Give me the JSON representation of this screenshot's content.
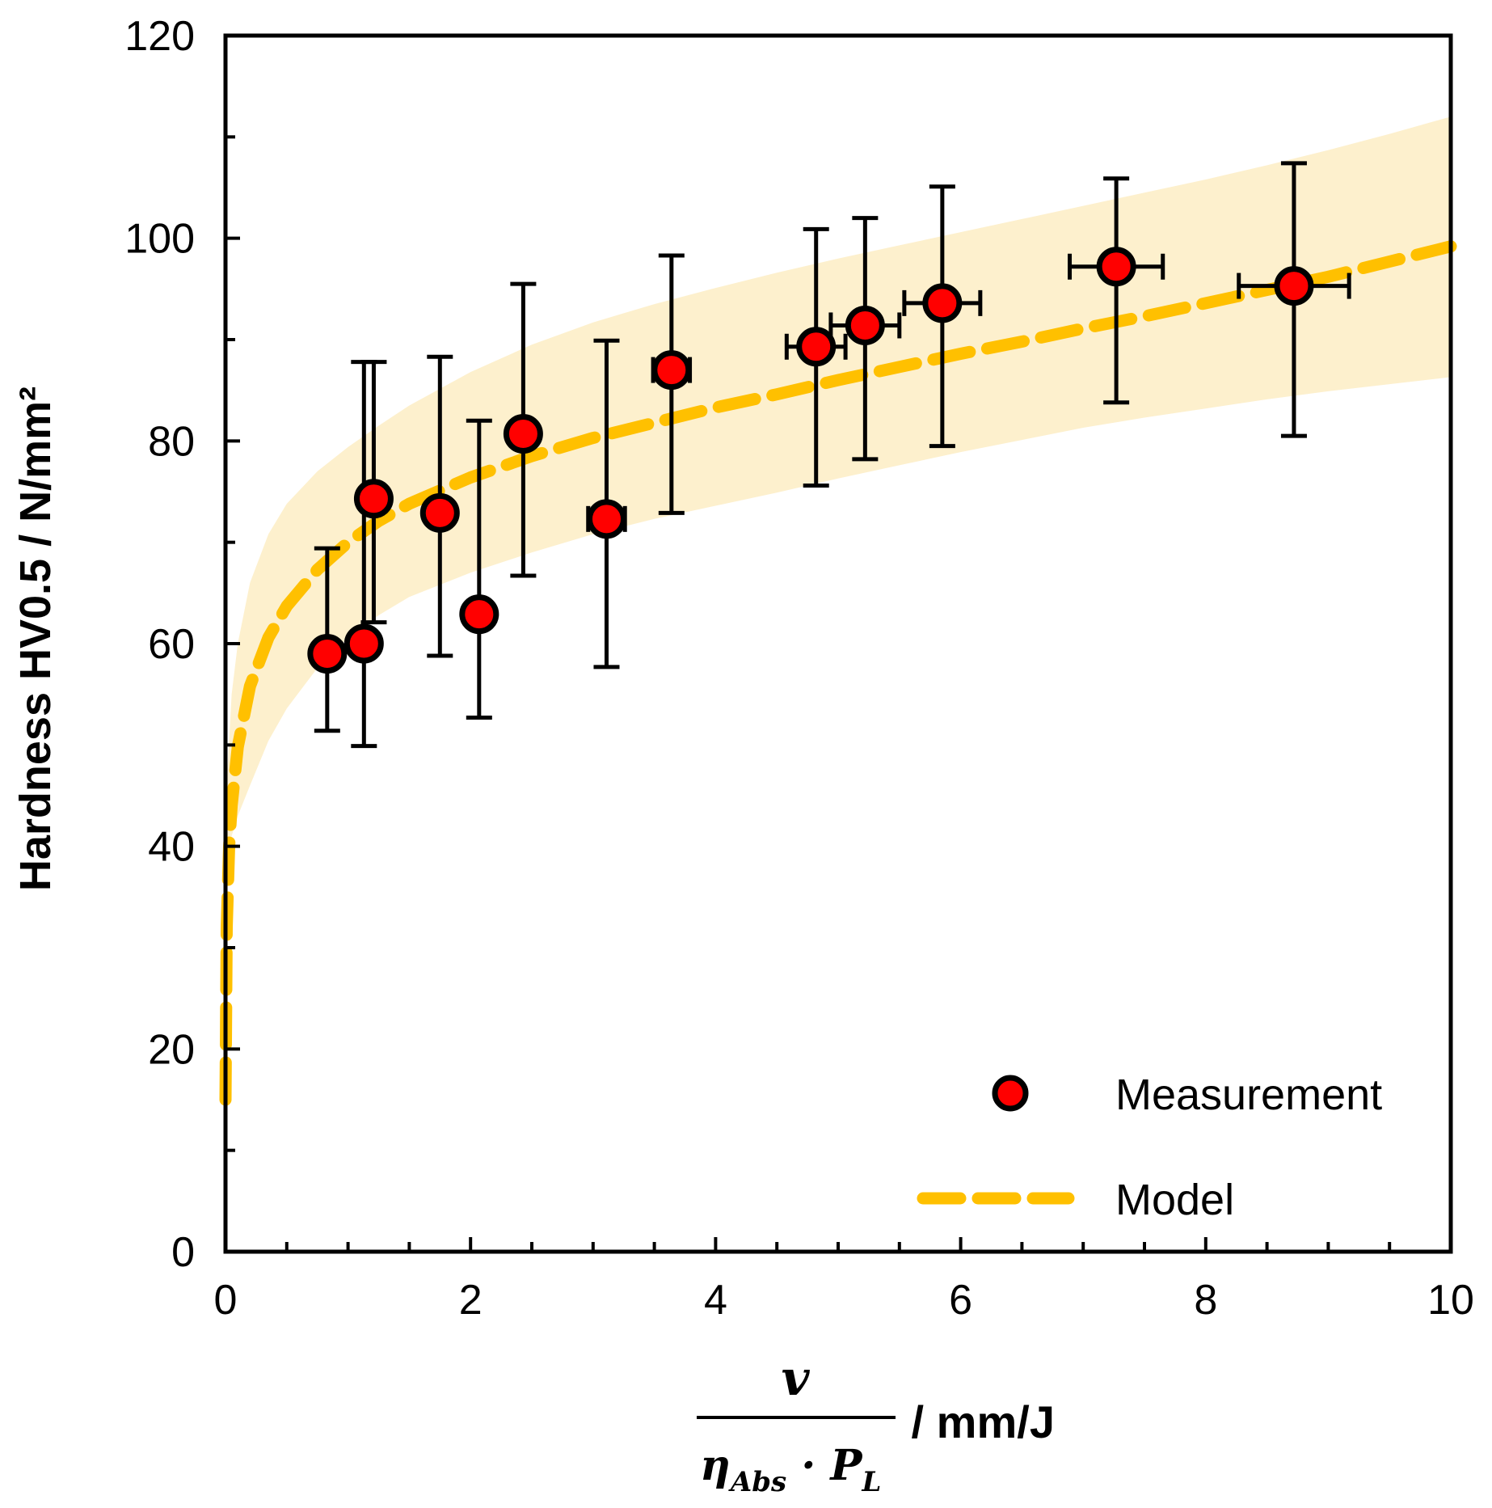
{
  "chart_data": {
    "type": "scatter",
    "title": "",
    "ylabel": "Hardness HV0.5 / N/mm²",
    "xlabel": {
      "numerator": "v",
      "denominator_main": "η",
      "denominator_sub": "Abs",
      "denominator_dot": " · ",
      "denominator_P": "P",
      "denominator_P_sub": "L",
      "unit": " / mm/J"
    },
    "xlim": [
      0,
      10
    ],
    "ylim": [
      0,
      120
    ],
    "x_ticks": [
      "0",
      "2",
      "4",
      "6",
      "8",
      "10"
    ],
    "x_tick_values": [
      0,
      2,
      4,
      6,
      8,
      10
    ],
    "x_minor_step": 0.5,
    "y_ticks": [
      "0",
      "20",
      "40",
      "60",
      "80",
      "100",
      "120"
    ],
    "y_tick_values": [
      0,
      20,
      40,
      60,
      80,
      100,
      120
    ],
    "y_minor_step": 10,
    "grid": false,
    "legend_position": "bottom-right",
    "legend": {
      "measurement": "Measurement",
      "model": "Model"
    },
    "colors": {
      "marker_fill": "#ff0000",
      "marker_edge": "#000000",
      "model_line": "#ffc000",
      "band": "#fdf0cd"
    },
    "series": [
      {
        "name": "Measurement",
        "type": "scatter",
        "points": [
          {
            "x": 0.83,
            "y": 59.0,
            "y_low": 51.4,
            "y_high": 69.4,
            "xerr": 0.0
          },
          {
            "x": 1.13,
            "y": 60.0,
            "y_low": 49.9,
            "y_high": 87.8,
            "xerr": 0.0
          },
          {
            "x": 1.21,
            "y": 74.3,
            "y_low": 62.1,
            "y_high": 87.8,
            "xerr": 0.0
          },
          {
            "x": 1.75,
            "y": 72.9,
            "y_low": 58.8,
            "y_high": 88.3,
            "xerr": 0.0
          },
          {
            "x": 2.07,
            "y": 62.9,
            "y_low": 52.7,
            "y_high": 82.0,
            "xerr": 0.0
          },
          {
            "x": 2.43,
            "y": 80.7,
            "y_low": 66.7,
            "y_high": 95.5,
            "xerr": 0.08
          },
          {
            "x": 3.11,
            "y": 72.3,
            "y_low": 57.7,
            "y_high": 89.9,
            "xerr": 0.15
          },
          {
            "x": 3.64,
            "y": 87.0,
            "y_low": 72.9,
            "y_high": 98.3,
            "xerr": 0.15
          },
          {
            "x": 4.82,
            "y": 89.3,
            "y_low": 75.6,
            "y_high": 100.9,
            "xerr": 0.24
          },
          {
            "x": 5.22,
            "y": 91.4,
            "y_low": 78.2,
            "y_high": 102.0,
            "xerr": 0.28
          },
          {
            "x": 5.85,
            "y": 93.6,
            "y_low": 79.5,
            "y_high": 105.1,
            "xerr": 0.31
          },
          {
            "x": 7.27,
            "y": 97.2,
            "y_low": 83.8,
            "y_high": 105.9,
            "xerr": 0.38
          },
          {
            "x": 8.72,
            "y": 95.3,
            "y_low": 80.5,
            "y_high": 107.4,
            "xerr": 0.45
          }
        ]
      },
      {
        "name": "Model",
        "type": "line",
        "style": "dashed",
        "x": [
          0.0,
          0.01,
          0.03,
          0.05,
          0.1,
          0.2,
          0.35,
          0.5,
          0.75,
          1.0,
          1.25,
          1.5,
          2.0,
          2.5,
          3.0,
          3.5,
          4.0,
          4.5,
          5.0,
          5.5,
          6.0,
          6.5,
          7.0,
          7.5,
          8.0,
          8.5,
          9.0,
          9.5,
          10.0
        ],
        "y": [
          15.0,
          32.0,
          40.0,
          44.0,
          49.8,
          55.8,
          60.6,
          63.7,
          67.3,
          70.0,
          72.1,
          73.8,
          76.4,
          78.5,
          80.3,
          81.8,
          83.3,
          84.6,
          86.0,
          87.3,
          88.6,
          89.8,
          91.1,
          92.3,
          93.6,
          94.9,
          96.2,
          97.7,
          99.2
        ]
      },
      {
        "name": "Model band",
        "type": "area",
        "x": [
          0.0,
          0.05,
          0.1,
          0.2,
          0.35,
          0.5,
          0.75,
          1.0,
          1.25,
          1.5,
          2.0,
          2.5,
          3.0,
          3.5,
          4.0,
          4.5,
          5.0,
          5.5,
          6.0,
          6.5,
          7.0,
          7.5,
          8.0,
          8.5,
          9.0,
          9.5,
          10.0
        ],
        "upper": [
          44.0,
          55.0,
          60.0,
          66.0,
          70.8,
          73.8,
          77.0,
          79.4,
          81.5,
          83.5,
          86.8,
          89.5,
          91.7,
          93.5,
          95.1,
          96.6,
          98.0,
          99.3,
          100.6,
          101.9,
          103.2,
          104.5,
          105.8,
          107.2,
          108.7,
          110.3,
          112.0
        ],
        "lower": [
          40.0,
          41.0,
          43.0,
          46.0,
          50.4,
          53.6,
          57.6,
          60.6,
          62.8,
          64.6,
          67.0,
          69.0,
          70.8,
          72.3,
          73.6,
          74.9,
          76.3,
          77.6,
          78.9,
          80.1,
          81.3,
          82.3,
          83.2,
          84.1,
          84.9,
          85.6,
          86.3
        ]
      }
    ]
  }
}
